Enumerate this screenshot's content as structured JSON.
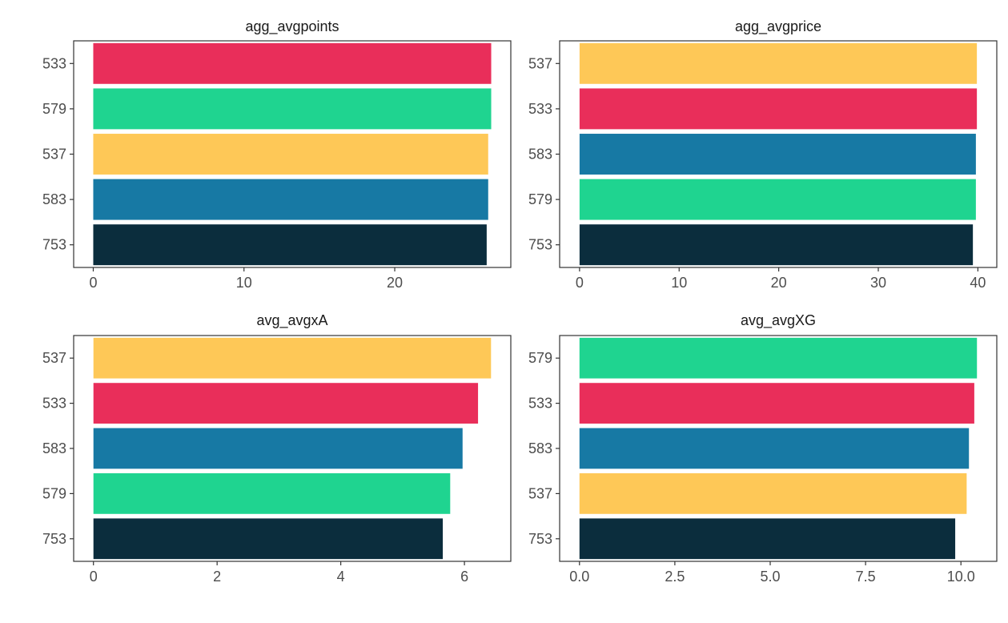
{
  "chart_data": [
    {
      "type": "bar",
      "orientation": "horizontal",
      "title": "agg_avgpoints",
      "categories": [
        "753",
        "583",
        "537",
        "579",
        "533"
      ],
      "values": [
        26.1,
        26.2,
        26.2,
        26.4,
        26.4
      ],
      "colors": [
        "#0b2d3d",
        "#1779a4",
        "#fec857",
        "#1fd490",
        "#e92e5a"
      ],
      "xlim": [
        -1.3,
        27.7
      ],
      "xticks": [
        0,
        10,
        20
      ],
      "xtick_labels": [
        "0",
        "10",
        "20"
      ]
    },
    {
      "type": "bar",
      "orientation": "horizontal",
      "title": "agg_avgprice",
      "categories": [
        "753",
        "579",
        "583",
        "533",
        "537"
      ],
      "values": [
        39.5,
        39.8,
        39.8,
        39.9,
        39.9
      ],
      "colors": [
        "#0b2d3d",
        "#1fd490",
        "#1779a4",
        "#e92e5a",
        "#fec857"
      ],
      "xlim": [
        -2.0,
        41.9
      ],
      "xticks": [
        0,
        10,
        20,
        30,
        40
      ],
      "xtick_labels": [
        "0",
        "10",
        "20",
        "30",
        "40"
      ]
    },
    {
      "type": "bar",
      "orientation": "horizontal",
      "title": "avg_avgxA",
      "categories": [
        "753",
        "579",
        "583",
        "533",
        "537"
      ],
      "values": [
        5.65,
        5.77,
        5.97,
        6.22,
        6.43
      ],
      "colors": [
        "#0b2d3d",
        "#1fd490",
        "#1779a4",
        "#e92e5a",
        "#fec857"
      ],
      "xlim": [
        -0.32,
        6.75
      ],
      "xticks": [
        0,
        2,
        4,
        6
      ],
      "xtick_labels": [
        "0",
        "2",
        "4",
        "6"
      ]
    },
    {
      "type": "bar",
      "orientation": "horizontal",
      "title": "avg_avgXG",
      "categories": [
        "753",
        "537",
        "583",
        "533",
        "579"
      ],
      "values": [
        9.85,
        10.15,
        10.21,
        10.35,
        10.42
      ],
      "colors": [
        "#0b2d3d",
        "#fec857",
        "#1779a4",
        "#e92e5a",
        "#1fd490"
      ],
      "xlim": [
        -0.52,
        10.94
      ],
      "xticks": [
        0,
        2.5,
        5,
        7.5,
        10
      ],
      "xtick_labels": [
        "0.0",
        "2.5",
        "5.0",
        "7.5",
        "10.0"
      ]
    }
  ]
}
